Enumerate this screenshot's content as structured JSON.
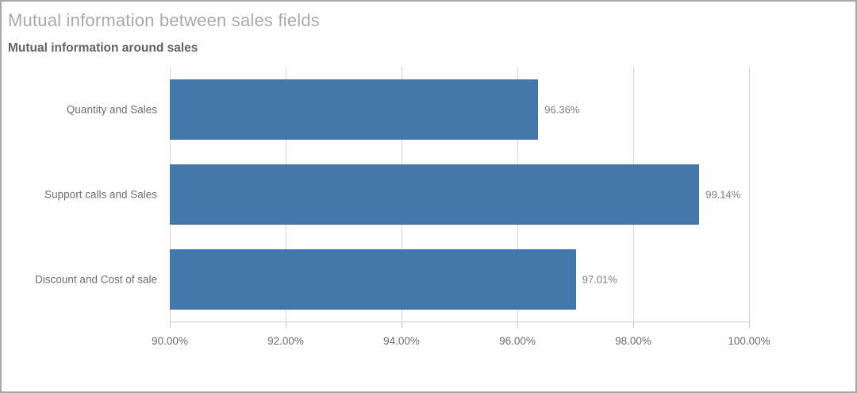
{
  "window": {
    "border_color": "#a7a7a7",
    "background": "#ffffff"
  },
  "header": {
    "title": "Mutual information between sales fields",
    "subtitle": "Mutual information around sales"
  },
  "chart_data": {
    "type": "bar",
    "orientation": "horizontal",
    "title": "Mutual information around sales",
    "categories": [
      "Quantity and Sales",
      "Support calls and Sales",
      "Discount and Cost of sale"
    ],
    "values": [
      96.36,
      99.14,
      97.01
    ],
    "value_labels": [
      "96.36%",
      "99.14%",
      "97.01%"
    ],
    "xlim": [
      90,
      100
    ],
    "x_ticks": [
      90,
      92,
      94,
      96,
      98,
      100
    ],
    "x_tick_labels": [
      "90.00%",
      "92.00%",
      "94.00%",
      "96.00%",
      "98.00%",
      "100.00%"
    ],
    "grid": true,
    "legend": false,
    "bar_color": "#4477aa"
  }
}
